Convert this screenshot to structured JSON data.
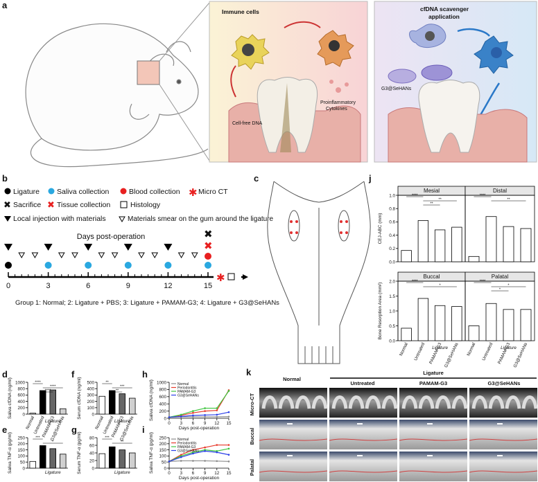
{
  "figure": {
    "a": {
      "label": "a",
      "immune_title": "Immune cells",
      "cfdna_label": "Cell-free DNA",
      "cytokines_label": [
        "Proinflammatory",
        "Cytokines"
      ],
      "scavenger_title": [
        "cfDNA scavenger",
        "application"
      ],
      "g3_label": "G3@SeHANs"
    },
    "b": {
      "label": "b",
      "legend": [
        "Ligature",
        "Saliva collection",
        "Blood collection",
        "Micro CT",
        "Sacrifice",
        "Tissue collection",
        "Histology",
        "Local injection with materials",
        "Materials smear on the gum around the ligature"
      ],
      "days_title": "Days post-operation",
      "day_ticks": [
        0,
        3,
        6,
        9,
        12,
        15
      ],
      "groups": "Group 1: Normal; 2: Ligature + PBS; 3: Ligature + PAMAM-G3; 4: Ligature + G3@SeHANs"
    },
    "c": {
      "label": "c"
    },
    "k": {
      "label": "k",
      "columns": [
        "Normal",
        "Untreated",
        "PAMAM-G3",
        "G3@SeHANs"
      ],
      "group_label": "Ligature",
      "rows": [
        "Micro-CT",
        "Buccal",
        "Palatal"
      ]
    }
  },
  "chart_data": [
    {
      "type": "bar",
      "label": "d",
      "ylabel": "Saliva cfDNA (ng/ml)",
      "ylim": [
        0,
        1000
      ],
      "yticks": [
        0,
        200,
        400,
        600,
        800,
        1000
      ],
      "categories": [
        "Normal",
        "Untreated",
        "PAMAM-G3",
        "G3@SeHANs"
      ],
      "group_label": "Ligature",
      "values": [
        30,
        740,
        760,
        170
      ],
      "colors": [
        "#ffffff",
        "#000000",
        "#666666",
        "#d0d0d0"
      ],
      "significance": [
        "****",
        "****",
        "****"
      ]
    },
    {
      "type": "bar",
      "label": "e",
      "ylabel": "Saliva TNF-α (pg/ml)",
      "ylim": [
        0,
        250
      ],
      "yticks": [
        0,
        50,
        100,
        150,
        200,
        250
      ],
      "group_label": "Ligature",
      "values": [
        55,
        185,
        160,
        115
      ],
      "colors": [
        "#ffffff",
        "#000000",
        "#666666",
        "#d0d0d0"
      ],
      "significance": [
        "***",
        "*"
      ]
    },
    {
      "type": "bar",
      "label": "f",
      "ylabel": "Serum cfDNA (ng/ml)",
      "ylim": [
        0,
        500
      ],
      "yticks": [
        0,
        100,
        200,
        300,
        400,
        500
      ],
      "categories": [
        "Normal",
        "Untreated",
        "PAMAM-G3",
        "G3@SeHANs"
      ],
      "group_label": "Ligature",
      "values": [
        280,
        370,
        320,
        250
      ],
      "colors": [
        "#ffffff",
        "#000000",
        "#666666",
        "#d0d0d0"
      ],
      "significance": [
        "**",
        "***",
        "**"
      ]
    },
    {
      "type": "bar",
      "label": "g",
      "ylabel": "Serum TNF-α (pg/ml)",
      "ylim": [
        0,
        80
      ],
      "yticks": [
        0,
        20,
        40,
        60,
        80
      ],
      "group_label": "Ligature",
      "values": [
        38,
        56,
        48,
        40
      ],
      "colors": [
        "#ffffff",
        "#000000",
        "#666666",
        "#d0d0d0"
      ],
      "significance": [
        "***",
        "**"
      ]
    },
    {
      "type": "line",
      "label": "h",
      "ylabel": "Saliva cfDNA (ng/ml)",
      "xlabel": "Days post-operation",
      "x": [
        0,
        3,
        6,
        9,
        12,
        15
      ],
      "xlim": [
        0,
        15
      ],
      "xticks": [
        0,
        3,
        6,
        9,
        12,
        15
      ],
      "ylim": [
        0,
        1000
      ],
      "yticks": [
        0,
        200,
        400,
        600,
        800,
        1000
      ],
      "series": [
        {
          "name": "Normal",
          "color": "#8c8c8c",
          "values": [
            30,
            40,
            40,
            40,
            40,
            45
          ]
        },
        {
          "name": "Periodontitis",
          "color": "#e8392a",
          "values": [
            30,
            80,
            150,
            200,
            220,
            780
          ]
        },
        {
          "name": "PAMAM-G3",
          "color": "#3ec43e",
          "values": [
            30,
            100,
            200,
            280,
            280,
            760
          ]
        },
        {
          "name": "G3@SeHANs",
          "color": "#2a3ee8",
          "values": [
            30,
            50,
            80,
            90,
            100,
            170
          ]
        }
      ]
    },
    {
      "type": "line",
      "label": "i",
      "ylabel": "Saliva TNF-α (pg/ml)",
      "xlabel": "Days post-operation",
      "x": [
        0,
        3,
        6,
        9,
        12,
        15
      ],
      "xlim": [
        0,
        15
      ],
      "xticks": [
        0,
        3,
        6,
        9,
        12,
        15
      ],
      "ylim": [
        0,
        250
      ],
      "yticks": [
        0,
        50,
        100,
        150,
        200,
        250
      ],
      "series": [
        {
          "name": "Normal",
          "color": "#8c8c8c",
          "values": [
            55,
            60,
            60,
            60,
            58,
            55
          ]
        },
        {
          "name": "Periodontitis",
          "color": "#e8392a",
          "values": [
            55,
            110,
            150,
            170,
            190,
            190
          ]
        },
        {
          "name": "PAMAM-G3",
          "color": "#3ec43e",
          "values": [
            55,
            100,
            130,
            150,
            140,
            160
          ]
        },
        {
          "name": "G3@SeHANs",
          "color": "#2a3ee8",
          "values": [
            55,
            90,
            120,
            140,
            130,
            110
          ]
        }
      ]
    },
    {
      "type": "bar",
      "label": "j",
      "title": "Mesial",
      "ylabel": "CEJ-ABC (mm)",
      "ylim": [
        0,
        1
      ],
      "yticks": [
        {
          "value": 0,
          "label": "0.0"
        },
        {
          "value": 0.2,
          "label": "0.2"
        },
        {
          "value": 0.4,
          "label": "0.4"
        },
        {
          "value": 0.6,
          "label": "0.6"
        },
        {
          "value": 0.8,
          "label": "0.8"
        },
        {
          "value": 1,
          "label": "1.0"
        }
      ],
      "values": [
        0.17,
        0.62,
        0.48,
        0.52
      ],
      "colors": [
        "#ffffff",
        "#ffffff",
        "#ffffff",
        "#ffffff"
      ],
      "significance": [
        "****",
        "**",
        "**"
      ]
    },
    {
      "type": "bar",
      "title": "Distal",
      "ylim": [
        0,
        1
      ],
      "values": [
        0.08,
        0.68,
        0.53,
        0.5
      ],
      "colors": [
        "#ffffff",
        "#ffffff",
        "#ffffff",
        "#ffffff"
      ],
      "significance": [
        "****",
        "**"
      ]
    },
    {
      "type": "bar",
      "title": "Buccal",
      "ylabel": "Bone Resorption Area (mm²)",
      "ylim": [
        0,
        2
      ],
      "yticks": [
        {
          "value": 0,
          "label": "0.0"
        },
        {
          "value": 0.5,
          "label": "0.5"
        },
        {
          "value": 1,
          "label": "1.0"
        },
        {
          "value": 1.5,
          "label": "1.5"
        },
        {
          "value": 2,
          "label": "2.0"
        }
      ],
      "categories": [
        "Normal",
        "Untreated",
        "PAMAM-G3",
        "G3@SeHANs"
      ],
      "group_label": "Ligature",
      "values": [
        0.42,
        1.42,
        1.18,
        1.15
      ],
      "colors": [
        "#ffffff",
        "#ffffff",
        "#ffffff",
        "#ffffff"
      ],
      "significance": [
        "****",
        "*"
      ]
    },
    {
      "type": "bar",
      "title": "Palatal",
      "ylim": [
        0,
        2
      ],
      "categories": [
        "Normal",
        "Untreated",
        "PAMAM-G3",
        "G3@SeHANs"
      ],
      "group_label": "Ligature",
      "values": [
        0.5,
        1.25,
        1.05,
        1.05
      ],
      "colors": [
        "#ffffff",
        "#ffffff",
        "#ffffff",
        "#ffffff"
      ],
      "significance": [
        "****",
        "*",
        "*"
      ]
    }
  ]
}
